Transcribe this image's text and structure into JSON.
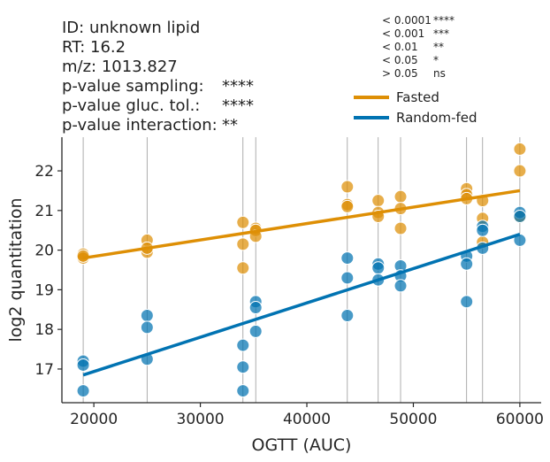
{
  "info": {
    "id_line": "ID: unknown lipid",
    "rt_line": "RT: 16.2",
    "mz_line": "m/z: 1013.827",
    "p_sampling_label": "p-value sampling:",
    "p_sampling_value": "****",
    "p_gluc_label": "p-value gluc. tol.:",
    "p_gluc_value": "****",
    "p_interaction_label": "p-value interaction:",
    "p_interaction_value": "**"
  },
  "significance_key": [
    {
      "threshold": "< 0.0001",
      "stars": "****"
    },
    {
      "threshold": "< 0.001",
      "stars": "***"
    },
    {
      "threshold": "< 0.01",
      "stars": "**"
    },
    {
      "threshold": "< 0.05",
      "stars": "*"
    },
    {
      "threshold": "> 0.05",
      "stars": "ns"
    }
  ],
  "colors": {
    "fasted": "#de8f05",
    "random_fed": "#0173b2",
    "vline": "#999999",
    "axis": "#262626"
  },
  "chart_data": {
    "type": "scatter",
    "title": "",
    "xlabel": "OGTT (AUC)",
    "ylabel": "log2 quantitation",
    "xlim": [
      17000,
      62000
    ],
    "ylim": [
      16.15,
      22.85
    ],
    "xticks": [
      20000,
      30000,
      40000,
      50000,
      60000
    ],
    "xtick_labels": [
      "20000",
      "30000",
      "40000",
      "50000",
      "60000"
    ],
    "yticks": [
      17,
      18,
      19,
      20,
      21,
      22
    ],
    "ytick_labels": [
      "17",
      "18",
      "19",
      "20",
      "21",
      "22"
    ],
    "grid": false,
    "legend_position": "top-right",
    "vlines": [
      19000,
      25000,
      34000,
      35200,
      43800,
      46700,
      48800,
      55000,
      56500,
      60000
    ],
    "series": [
      {
        "name": "Fasted",
        "points": [
          [
            19000,
            19.9
          ],
          [
            19000,
            19.8
          ],
          [
            19000,
            19.85
          ],
          [
            25000,
            20.25
          ],
          [
            25000,
            19.95
          ],
          [
            25000,
            20.05
          ],
          [
            34000,
            20.7
          ],
          [
            34000,
            20.15
          ],
          [
            34000,
            19.55
          ],
          [
            35200,
            20.55
          ],
          [
            35200,
            20.5
          ],
          [
            35200,
            20.35
          ],
          [
            43800,
            21.6
          ],
          [
            43800,
            21.15
          ],
          [
            43800,
            21.1
          ],
          [
            46700,
            21.25
          ],
          [
            46700,
            20.95
          ],
          [
            46700,
            20.85
          ],
          [
            48800,
            21.35
          ],
          [
            48800,
            21.05
          ],
          [
            48800,
            20.55
          ],
          [
            55000,
            21.55
          ],
          [
            55000,
            21.4
          ],
          [
            55000,
            21.3
          ],
          [
            56500,
            21.25
          ],
          [
            56500,
            20.8
          ],
          [
            56500,
            20.2
          ],
          [
            60000,
            22.55
          ],
          [
            60000,
            22.0
          ],
          [
            60000,
            20.85
          ]
        ],
        "fit": {
          "x": [
            19000,
            60000
          ],
          "y": [
            19.8,
            21.5
          ]
        }
      },
      {
        "name": "Random-fed",
        "points": [
          [
            19000,
            17.2
          ],
          [
            19000,
            17.1
          ],
          [
            19000,
            16.45
          ],
          [
            25000,
            18.35
          ],
          [
            25000,
            18.05
          ],
          [
            25000,
            17.25
          ],
          [
            34000,
            17.6
          ],
          [
            34000,
            17.05
          ],
          [
            34000,
            16.45
          ],
          [
            35200,
            18.7
          ],
          [
            35200,
            18.55
          ],
          [
            35200,
            17.95
          ],
          [
            43800,
            19.8
          ],
          [
            43800,
            19.3
          ],
          [
            43800,
            18.35
          ],
          [
            46700,
            19.65
          ],
          [
            46700,
            19.55
          ],
          [
            46700,
            19.25
          ],
          [
            48800,
            19.6
          ],
          [
            48800,
            19.35
          ],
          [
            48800,
            19.1
          ],
          [
            55000,
            19.85
          ],
          [
            55000,
            19.65
          ],
          [
            55000,
            18.7
          ],
          [
            56500,
            20.6
          ],
          [
            56500,
            20.5
          ],
          [
            56500,
            20.05
          ],
          [
            60000,
            20.95
          ],
          [
            60000,
            20.85
          ],
          [
            60000,
            20.25
          ]
        ],
        "fit": {
          "x": [
            19000,
            60000
          ],
          "y": [
            16.85,
            20.4
          ]
        }
      }
    ]
  }
}
